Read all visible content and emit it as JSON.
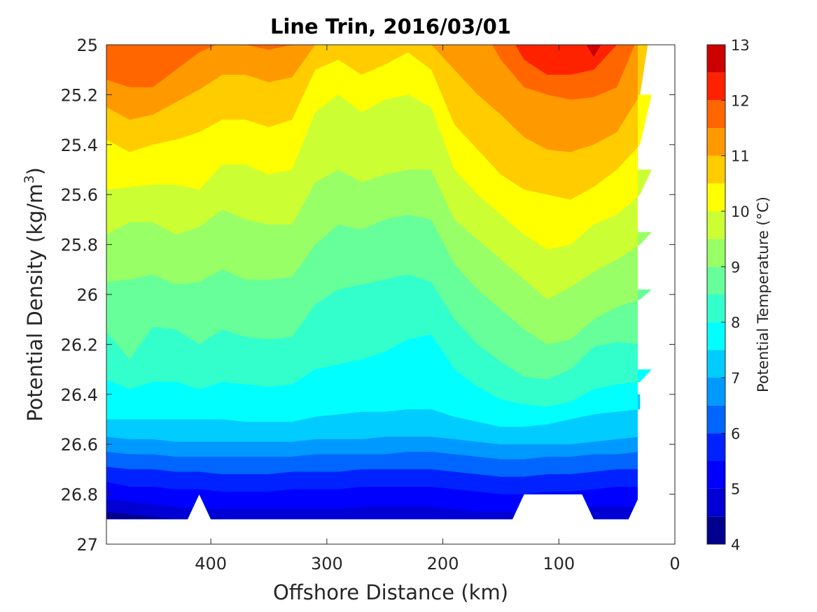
{
  "chart_data": {
    "type": "heatmap",
    "title": "Line Trin, 2016/03/01",
    "xlabel": "Offshore Distance (km)",
    "ylabel_main": "Potential Density (kg/m",
    "ylabel_sup": "3",
    "ylabel_close": ")",
    "colorbar_label": "Potential Temperature (°C)",
    "xlim": [
      490,
      0
    ],
    "ylim": [
      25,
      27
    ],
    "x_ticks": [
      400,
      300,
      200,
      100,
      0
    ],
    "y_ticks": [
      25,
      25.2,
      25.4,
      25.6,
      25.8,
      26,
      26.2,
      26.4,
      26.6,
      26.8,
      27
    ],
    "y_tick_labels": [
      "25",
      "25.2",
      "25.4",
      "25.6",
      "25.8",
      "26",
      "26.2",
      "26.4",
      "26.6",
      "26.8",
      "27"
    ],
    "colorbar_ticks": [
      13,
      12,
      11,
      10,
      9,
      8,
      7,
      6,
      5,
      4
    ],
    "levels": [
      4,
      4.5,
      5,
      5.5,
      6,
      6.5,
      7,
      7.5,
      8,
      8.5,
      9,
      9.5,
      10,
      10.5,
      11,
      11.5,
      12,
      12.5,
      13
    ],
    "colors": [
      "#00008f",
      "#0000d4",
      "#0000ff",
      "#0022ff",
      "#0066ff",
      "#0099ff",
      "#00ccff",
      "#00ffff",
      "#33ffcc",
      "#66ff99",
      "#99ff66",
      "#ccff33",
      "#ffff00",
      "#ffcc00",
      "#ff9900",
      "#ff6600",
      "#ff2200",
      "#cc0000"
    ],
    "x": [
      490,
      470,
      450,
      430,
      410,
      390,
      370,
      350,
      330,
      310,
      290,
      270,
      250,
      230,
      210,
      190,
      170,
      150,
      130,
      110,
      90,
      70,
      50,
      30,
      20
    ],
    "isopycnals": [
      {
        "level": 12.5,
        "y": [
          24.9,
          24.9,
          24.9,
          24.9,
          24.9,
          24.9,
          24.9,
          24.9,
          24.9,
          24.9,
          24.9,
          24.9,
          24.9,
          24.9,
          24.9,
          24.9,
          24.9,
          24.9,
          24.9,
          24.9,
          24.9,
          25.05,
          24.9,
          24.9,
          24.9
        ]
      },
      {
        "level": 12,
        "y": [
          24.9,
          25.0,
          24.98,
          24.9,
          24.9,
          24.9,
          24.9,
          24.9,
          24.9,
          24.9,
          24.9,
          24.9,
          24.9,
          24.9,
          24.9,
          24.9,
          24.9,
          24.9,
          25.06,
          25.12,
          25.12,
          25.1,
          25.0,
          24.9,
          24.9
        ]
      },
      {
        "level": 11.5,
        "y": [
          25.14,
          25.17,
          25.17,
          25.1,
          25.03,
          24.99,
          25.0,
          25.02,
          25.0,
          24.9,
          24.9,
          24.9,
          24.9,
          24.9,
          24.9,
          24.9,
          24.9,
          25.06,
          25.17,
          25.2,
          25.22,
          25.21,
          25.17,
          24.95,
          24.9
        ]
      },
      {
        "level": 11,
        "y": [
          25.25,
          25.3,
          25.28,
          25.23,
          25.18,
          25.12,
          25.12,
          25.15,
          25.13,
          25.0,
          24.98,
          25.0,
          24.98,
          24.98,
          25.0,
          25.1,
          25.2,
          25.28,
          25.37,
          25.42,
          25.43,
          25.4,
          25.35,
          25.2,
          24.9
        ]
      },
      {
        "level": 10.5,
        "y": [
          25.38,
          25.43,
          25.4,
          25.38,
          25.35,
          25.3,
          25.3,
          25.33,
          25.3,
          25.1,
          25.06,
          25.12,
          25.08,
          25.03,
          25.1,
          25.32,
          25.42,
          25.52,
          25.58,
          25.6,
          25.62,
          25.57,
          25.5,
          25.4,
          25.2
        ]
      },
      {
        "level": 10,
        "y": [
          25.58,
          25.57,
          25.56,
          25.56,
          25.58,
          25.48,
          25.48,
          25.52,
          25.5,
          25.27,
          25.2,
          25.27,
          25.22,
          25.2,
          25.25,
          25.5,
          25.6,
          25.68,
          25.76,
          25.82,
          25.8,
          25.72,
          25.68,
          25.6,
          25.5
        ]
      },
      {
        "level": 9.5,
        "y": [
          25.76,
          25.71,
          25.71,
          25.76,
          25.73,
          25.66,
          25.7,
          25.72,
          25.72,
          25.55,
          25.5,
          25.55,
          25.52,
          25.5,
          25.5,
          25.7,
          25.78,
          25.86,
          25.94,
          26.02,
          25.97,
          25.91,
          25.86,
          25.8,
          25.75
        ]
      },
      {
        "level": 9,
        "y": [
          25.95,
          25.94,
          25.92,
          25.96,
          25.95,
          25.9,
          25.94,
          25.94,
          25.93,
          25.8,
          25.72,
          25.74,
          25.7,
          25.68,
          25.7,
          25.88,
          25.98,
          26.06,
          26.14,
          26.2,
          26.18,
          26.1,
          26.05,
          26.02,
          25.98
        ]
      },
      {
        "level": 8.5,
        "y": [
          26.15,
          26.26,
          26.13,
          26.14,
          26.2,
          26.14,
          26.17,
          26.18,
          26.17,
          26.04,
          25.98,
          25.96,
          25.94,
          25.92,
          25.95,
          26.1,
          26.2,
          26.27,
          26.33,
          26.34,
          26.3,
          26.21,
          26.19,
          26.2,
          26.2
        ]
      },
      {
        "level": 8,
        "y": [
          26.34,
          26.38,
          26.35,
          26.35,
          26.38,
          26.35,
          26.36,
          26.37,
          26.36,
          26.3,
          26.28,
          26.26,
          26.23,
          26.18,
          26.16,
          26.3,
          26.37,
          26.42,
          26.44,
          26.45,
          26.43,
          26.38,
          26.36,
          26.35,
          26.3
        ]
      },
      {
        "level": 7.5,
        "y": [
          26.5,
          26.5,
          26.5,
          26.5,
          26.5,
          26.5,
          26.51,
          26.51,
          26.51,
          26.49,
          26.48,
          26.47,
          26.47,
          26.46,
          26.46,
          26.49,
          26.51,
          26.53,
          26.53,
          26.52,
          26.5,
          26.48,
          26.47,
          26.46,
          26.4
        ]
      },
      {
        "level": 7,
        "y": [
          26.57,
          26.58,
          26.58,
          26.59,
          26.59,
          26.59,
          26.59,
          26.59,
          26.59,
          26.58,
          26.58,
          26.58,
          26.57,
          26.57,
          26.57,
          26.58,
          26.59,
          26.6,
          26.6,
          26.6,
          26.6,
          26.59,
          26.58,
          26.57,
          26.57
        ]
      },
      {
        "level": 6.5,
        "y": [
          26.63,
          26.64,
          26.64,
          26.65,
          26.65,
          26.65,
          26.65,
          26.65,
          26.65,
          26.64,
          26.64,
          26.64,
          26.64,
          26.63,
          26.63,
          26.64,
          26.65,
          26.66,
          26.66,
          26.65,
          26.65,
          26.64,
          26.64,
          26.63,
          26.63
        ]
      },
      {
        "level": 6,
        "y": [
          26.69,
          26.7,
          26.7,
          26.71,
          26.71,
          26.72,
          26.72,
          26.72,
          26.71,
          26.71,
          26.71,
          26.7,
          26.7,
          26.7,
          26.7,
          26.71,
          26.72,
          26.73,
          26.73,
          26.72,
          26.72,
          26.71,
          26.7,
          26.7,
          26.7
        ]
      },
      {
        "level": 5.5,
        "y": [
          26.75,
          26.77,
          26.77,
          26.78,
          26.78,
          26.79,
          26.79,
          26.79,
          26.78,
          26.78,
          26.78,
          26.77,
          26.77,
          26.77,
          26.77,
          26.78,
          26.79,
          26.8,
          26.8,
          26.79,
          26.79,
          26.78,
          26.77,
          26.77,
          26.77
        ]
      },
      {
        "level": 5,
        "y": [
          26.82,
          26.83,
          26.84,
          26.85,
          26.86,
          26.86,
          26.86,
          26.86,
          26.86,
          26.86,
          26.86,
          26.85,
          26.85,
          26.85,
          26.85,
          26.86,
          26.87,
          26.87,
          26.87,
          26.86,
          26.86,
          26.85,
          26.85,
          26.85,
          26.85
        ]
      },
      {
        "level": 4.5,
        "y": [
          26.87,
          26.88,
          26.89,
          26.9,
          26.9,
          26.9,
          26.9,
          26.9,
          26.9,
          26.9,
          26.9,
          26.9,
          26.9,
          26.9,
          26.9,
          26.9,
          26.9,
          26.9,
          26.9,
          26.9,
          26.9,
          26.9,
          26.9,
          26.9,
          26.9
        ]
      }
    ],
    "data_boundary": {
      "bottom_x": [
        490,
        420,
        410,
        400,
        140,
        130,
        80,
        70,
        40,
        30,
        30,
        20,
        20
      ],
      "bottom_y": [
        26.9,
        26.9,
        26.8,
        26.9,
        26.9,
        26.8,
        26.8,
        26.9,
        26.9,
        26.8,
        26.4,
        26.3,
        25.0
      ],
      "ceiling_y": 25.0
    }
  }
}
